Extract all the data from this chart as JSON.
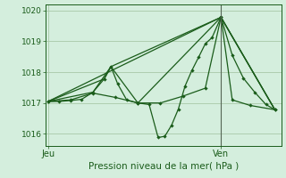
{
  "xlabel": "Pression niveau de la mer( hPa )",
  "bg_color": "#d4eedd",
  "grid_color": "#a8c8a8",
  "line_color": "#1a5c1a",
  "tick_label_color": "#1a5c1a",
  "xlabel_color": "#1a5c1a",
  "vline_color": "#556655",
  "ylim": [
    1015.6,
    1020.2
  ],
  "yticks": [
    1016,
    1017,
    1018,
    1019,
    1020
  ],
  "xlim": [
    -0.01,
    1.04
  ],
  "xtick_pos": [
    0.0,
    0.77
  ],
  "xtick_labels": [
    "Jeu",
    "Ven"
  ],
  "vline_x": 0.77,
  "lines": [
    {
      "xy": [
        0.0,
        1017.05,
        0.05,
        1017.05,
        0.1,
        1017.08,
        0.15,
        1017.12,
        0.2,
        1017.35,
        0.25,
        1017.78,
        0.28,
        1018.18,
        0.31,
        1017.62,
        0.35,
        1017.1,
        0.4,
        1017.0,
        0.45,
        1016.95,
        0.49,
        1015.88,
        0.52,
        1015.92,
        0.55,
        1016.28,
        0.58,
        1016.8,
        0.61,
        1017.55,
        0.64,
        1018.05,
        0.67,
        1018.48,
        0.7,
        1018.92,
        0.73,
        1019.12,
        0.77,
        1019.78,
        0.82,
        1018.55,
        0.87,
        1017.8,
        0.92,
        1017.35,
        0.97,
        1016.95,
        1.01,
        1016.78
      ],
      "markers": true
    },
    {
      "xy": [
        0.0,
        1017.05,
        0.1,
        1017.1,
        0.2,
        1017.32,
        0.3,
        1017.18,
        0.4,
        1017.0,
        0.5,
        1017.0,
        0.6,
        1017.22,
        0.7,
        1017.48,
        0.77,
        1019.78,
        0.82,
        1017.1,
        0.9,
        1016.92,
        1.01,
        1016.78
      ],
      "markers": true
    },
    {
      "xy": [
        0.0,
        1017.05,
        0.25,
        1017.78,
        0.28,
        1018.18,
        0.77,
        1019.78,
        1.01,
        1016.78
      ],
      "markers": false
    },
    {
      "xy": [
        0.0,
        1017.05,
        0.2,
        1017.35,
        0.28,
        1018.18,
        0.4,
        1017.0,
        0.77,
        1019.78,
        1.01,
        1016.78
      ],
      "markers": false
    },
    {
      "xy": [
        0.0,
        1017.05,
        0.77,
        1019.78,
        1.01,
        1016.78
      ],
      "markers": false
    }
  ]
}
